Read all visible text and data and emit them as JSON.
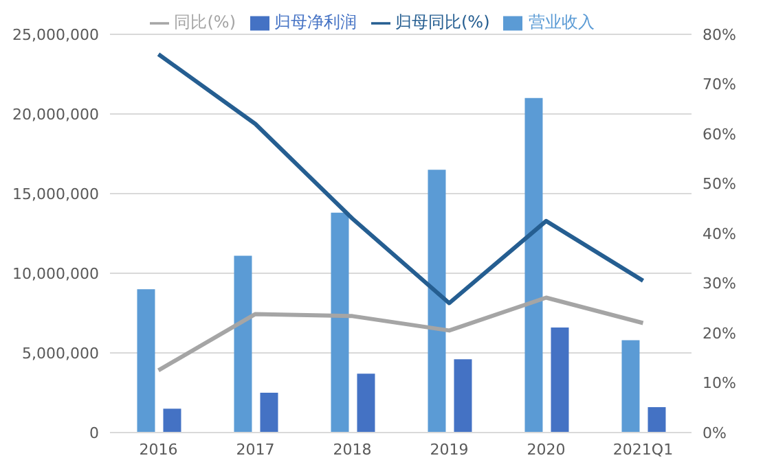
{
  "chart_data": {
    "type": "bar",
    "categories": [
      "2016",
      "2017",
      "2018",
      "2019",
      "2020",
      "2021Q1"
    ],
    "series": [
      {
        "name": "营业收入",
        "color": "#5b9bd5",
        "values": [
          9000000,
          11100000,
          13800000,
          16500000,
          21000000,
          5800000
        ]
      },
      {
        "name": "归母净利润",
        "color": "#4472c4",
        "values": [
          1500000,
          2500000,
          3700000,
          4600000,
          6600000,
          1600000
        ]
      },
      {
        "name": "同比(%)",
        "type": "line",
        "axis": "y2",
        "color": "#a5a5a5",
        "values": [
          12.5,
          23.8,
          23.4,
          20.5,
          27.1,
          22
        ]
      },
      {
        "name": "归母同比(%)",
        "type": "line",
        "axis": "y2",
        "color": "#255e91",
        "values": [
          76,
          62,
          43,
          26,
          42.5,
          30.5
        ]
      }
    ],
    "ylim": [
      0,
      25000000
    ],
    "yticks": [
      {
        "value": 0,
        "label": "0"
      },
      {
        "value": 5000000,
        "label": "5,000,000"
      },
      {
        "value": 10000000,
        "label": "10,000,000"
      },
      {
        "value": 15000000,
        "label": "15,000,000"
      },
      {
        "value": 20000000,
        "label": "20,000,000"
      },
      {
        "value": 25000000,
        "label": "25,000,000"
      }
    ],
    "y2lim": [
      0,
      80
    ],
    "y2ticks": [
      {
        "value": 0,
        "label": "0%"
      },
      {
        "value": 10,
        "label": "10%"
      },
      {
        "value": 20,
        "label": "20%"
      },
      {
        "value": 30,
        "label": "30%"
      },
      {
        "value": 40,
        "label": "40%"
      },
      {
        "value": 50,
        "label": "50%"
      },
      {
        "value": 60,
        "label": "60%"
      },
      {
        "value": 70,
        "label": "70%"
      },
      {
        "value": 80,
        "label": "80%"
      }
    ],
    "grid": "y",
    "legend": "top",
    "marker": "none",
    "line_style": "solid"
  }
}
